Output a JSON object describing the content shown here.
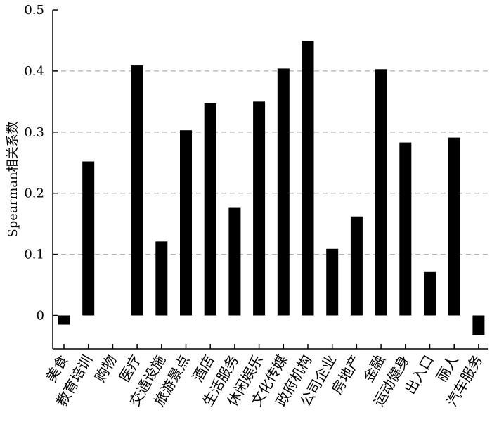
{
  "chart_data": {
    "type": "bar",
    "title": "",
    "xlabel": "",
    "ylabel": "Spearman相关系数",
    "ylim": [
      -0.05,
      0.5
    ],
    "yticks": [
      0,
      0.1,
      0.2,
      0.3,
      0.4,
      0.5
    ],
    "ytick_labels": [
      "0",
      "0.1",
      "0.2",
      "0.3",
      "0.4",
      "0.5"
    ],
    "grid": "horizontal dashed",
    "categories": [
      "美食",
      "教育培训",
      "购物",
      "医疗",
      "交通设施",
      "旅游景点",
      "酒店",
      "生活服务",
      "休闲娱乐",
      "文化传媒",
      "政府机构",
      "公司企业",
      "房地产",
      "金融",
      "运动健身",
      "出入口",
      "丽人",
      "汽车服务"
    ],
    "values": [
      -0.015,
      0.252,
      0.0,
      0.409,
      0.121,
      0.303,
      0.347,
      0.176,
      0.35,
      0.404,
      0.449,
      0.109,
      0.162,
      0.403,
      0.283,
      0.071,
      0.291,
      -0.032
    ],
    "bar_color": "#000000",
    "grid_color": "#b0b0b0"
  }
}
